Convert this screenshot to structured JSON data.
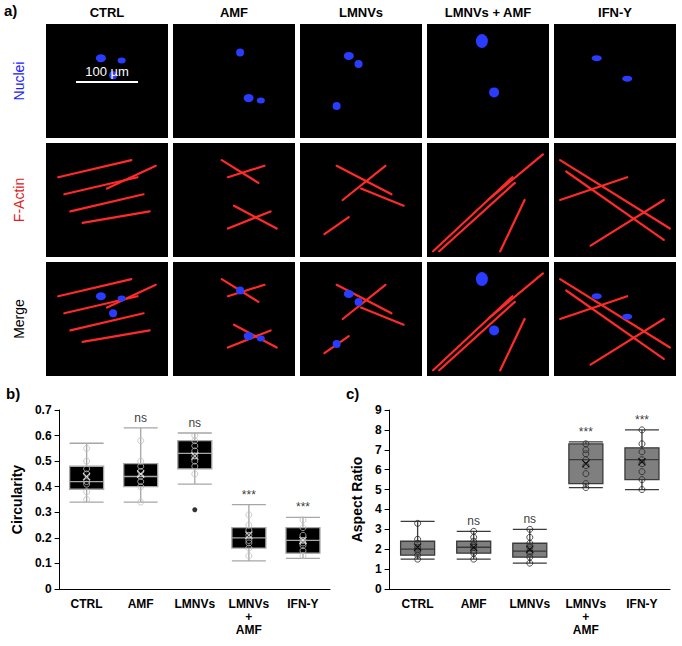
{
  "panel_a": {
    "label": "a)",
    "columns": [
      "CTRL",
      "AMF",
      "LMNVs",
      "LMNVs + AMF",
      "IFN-Y"
    ],
    "rows": [
      {
        "label": "Nuclei",
        "color": "#2020ff"
      },
      {
        "label": "F-Actin",
        "color": "#e02020"
      },
      {
        "label": "Merge",
        "color": "#000000"
      }
    ],
    "scale_bar": "100 µm"
  },
  "chart_data": [
    {
      "type": "box",
      "panel_label": "b)",
      "y_label": "Circularity",
      "categories": [
        "CTRL",
        "AMF",
        "LMNVs",
        "LMNVs + AMF",
        "IFN-Y"
      ],
      "color": "#000000",
      "values": [
        {
          "min": 0.34,
          "q1": 0.39,
          "median": 0.42,
          "q3": 0.48,
          "max": 0.57,
          "mean": 0.44,
          "points": [
            0.35,
            0.38,
            0.41,
            0.42,
            0.45,
            0.47,
            0.5,
            0.55
          ],
          "outliers": []
        },
        {
          "min": 0.34,
          "q1": 0.4,
          "median": 0.44,
          "q3": 0.49,
          "max": 0.63,
          "mean": 0.45,
          "points": [
            0.34,
            0.4,
            0.42,
            0.44,
            0.46,
            0.48,
            0.5,
            0.58
          ],
          "outliers": []
        },
        {
          "min": 0.41,
          "q1": 0.47,
          "median": 0.53,
          "q3": 0.58,
          "max": 0.61,
          "mean": 0.52,
          "points": [
            0.45,
            0.48,
            0.5,
            0.52,
            0.54,
            0.56,
            0.58,
            0.6
          ],
          "outliers": [
            0.31
          ]
        },
        {
          "min": 0.11,
          "q1": 0.16,
          "median": 0.2,
          "q3": 0.24,
          "max": 0.33,
          "mean": 0.21,
          "points": [
            0.13,
            0.16,
            0.18,
            0.19,
            0.21,
            0.23,
            0.25,
            0.29
          ],
          "outliers": []
        },
        {
          "min": 0.12,
          "q1": 0.14,
          "median": 0.19,
          "q3": 0.24,
          "max": 0.28,
          "mean": 0.19,
          "points": [
            0.13,
            0.15,
            0.17,
            0.18,
            0.19,
            0.21,
            0.24,
            0.27
          ],
          "outliers": []
        }
      ],
      "significance": [
        null,
        "ns",
        "ns",
        "***",
        "***"
      ],
      "ylim": [
        0,
        0.7
      ],
      "yticks": [
        0,
        0.1,
        0.2,
        0.3,
        0.4,
        0.5,
        0.6,
        0.7
      ],
      "grid": false
    },
    {
      "type": "box",
      "panel_label": "c)",
      "y_label": "Aspect Ratio",
      "categories": [
        "CTRL",
        "AMF",
        "LMNVs",
        "LMNVs + AMF",
        "IFN-Y"
      ],
      "color": "#7f7f7f",
      "values": [
        {
          "min": 1.5,
          "q1": 1.7,
          "median": 2.0,
          "q3": 2.4,
          "max": 3.4,
          "mean": 2.1,
          "points": [
            1.5,
            1.7,
            1.9,
            2.0,
            2.1,
            2.3,
            2.5,
            3.3
          ],
          "outliers": []
        },
        {
          "min": 1.5,
          "q1": 1.8,
          "median": 2.1,
          "q3": 2.4,
          "max": 2.9,
          "mean": 2.1,
          "points": [
            1.5,
            1.8,
            1.9,
            2.1,
            2.2,
            2.4,
            2.6,
            2.9
          ],
          "outliers": []
        },
        {
          "min": 1.3,
          "q1": 1.6,
          "median": 1.9,
          "q3": 2.3,
          "max": 3.0,
          "mean": 2.0,
          "points": [
            1.3,
            1.6,
            1.8,
            1.9,
            2.1,
            2.3,
            2.6,
            3.0
          ],
          "outliers": []
        },
        {
          "min": 5.1,
          "q1": 5.3,
          "median": 6.5,
          "q3": 7.3,
          "max": 7.4,
          "mean": 6.3,
          "points": [
            5.1,
            5.3,
            5.8,
            6.2,
            6.5,
            6.8,
            7.0,
            7.3
          ],
          "outliers": []
        },
        {
          "min": 5.0,
          "q1": 5.5,
          "median": 6.5,
          "q3": 7.1,
          "max": 8.0,
          "mean": 6.4,
          "points": [
            5.0,
            5.5,
            5.9,
            6.3,
            6.5,
            6.9,
            7.3,
            8.0
          ],
          "outliers": []
        }
      ],
      "significance": [
        null,
        "ns",
        "ns",
        "***",
        "***"
      ],
      "ylim": [
        0,
        9
      ],
      "yticks": [
        0,
        1,
        2,
        3,
        4,
        5,
        6,
        7,
        8,
        9
      ],
      "grid": false
    }
  ]
}
